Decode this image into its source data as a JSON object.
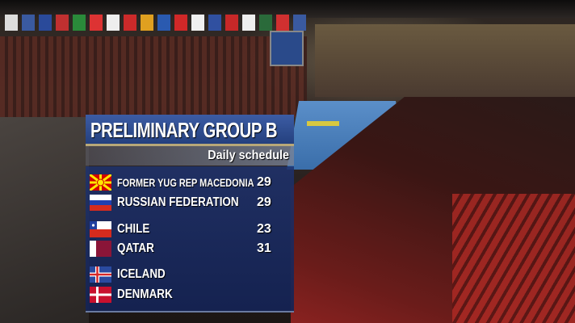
{
  "overlay": {
    "title": "PRELIMINARY GROUP B",
    "subtitle": "Daily schedule",
    "matches": [
      {
        "teams": [
          {
            "name": "FORMER YUG REP MACEDONIA",
            "score": "29",
            "flag": "macedonia-flag"
          },
          {
            "name": "RUSSIAN FEDERATION",
            "score": "29",
            "flag": "russia-flag"
          }
        ]
      },
      {
        "teams": [
          {
            "name": "CHILE",
            "score": "23",
            "flag": "chile-flag"
          },
          {
            "name": "QATAR",
            "score": "31",
            "flag": "qatar-flag"
          }
        ]
      },
      {
        "teams": [
          {
            "name": "ICELAND",
            "score": "",
            "flag": "iceland-flag"
          },
          {
            "name": "DENMARK",
            "score": "",
            "flag": "denmark-flag"
          }
        ]
      }
    ]
  },
  "colors": {
    "panel_blue": "#24407e",
    "accent_gold": "#b8a878"
  }
}
